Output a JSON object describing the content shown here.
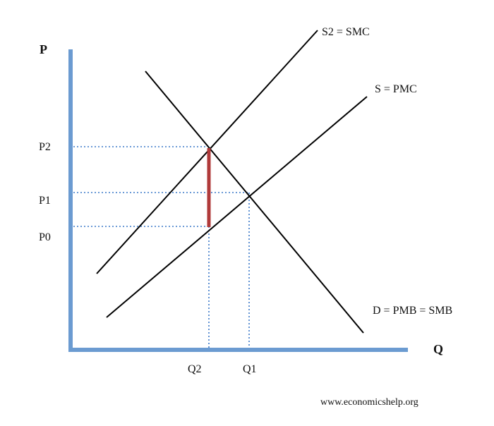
{
  "diagram": {
    "axes": {
      "y_label": "P",
      "x_label": "Q"
    },
    "price_levels": [
      {
        "id": "p2",
        "label": "P2"
      },
      {
        "id": "p1",
        "label": "P1"
      },
      {
        "id": "p0",
        "label": "P0"
      }
    ],
    "quantity_levels": [
      {
        "id": "q2",
        "label": "Q2"
      },
      {
        "id": "q1",
        "label": "Q1"
      }
    ],
    "curves": [
      {
        "id": "smc",
        "label": "S2 = SMC"
      },
      {
        "id": "pmc",
        "label": "S = PMC"
      },
      {
        "id": "demand",
        "label": "D = PMB = SMB"
      }
    ],
    "colors": {
      "axis": "#6b9bd1",
      "curve": "#000000",
      "guide": "#3a78c8",
      "externality": "#b03a3a"
    },
    "source": "www.economicshelp.org"
  }
}
